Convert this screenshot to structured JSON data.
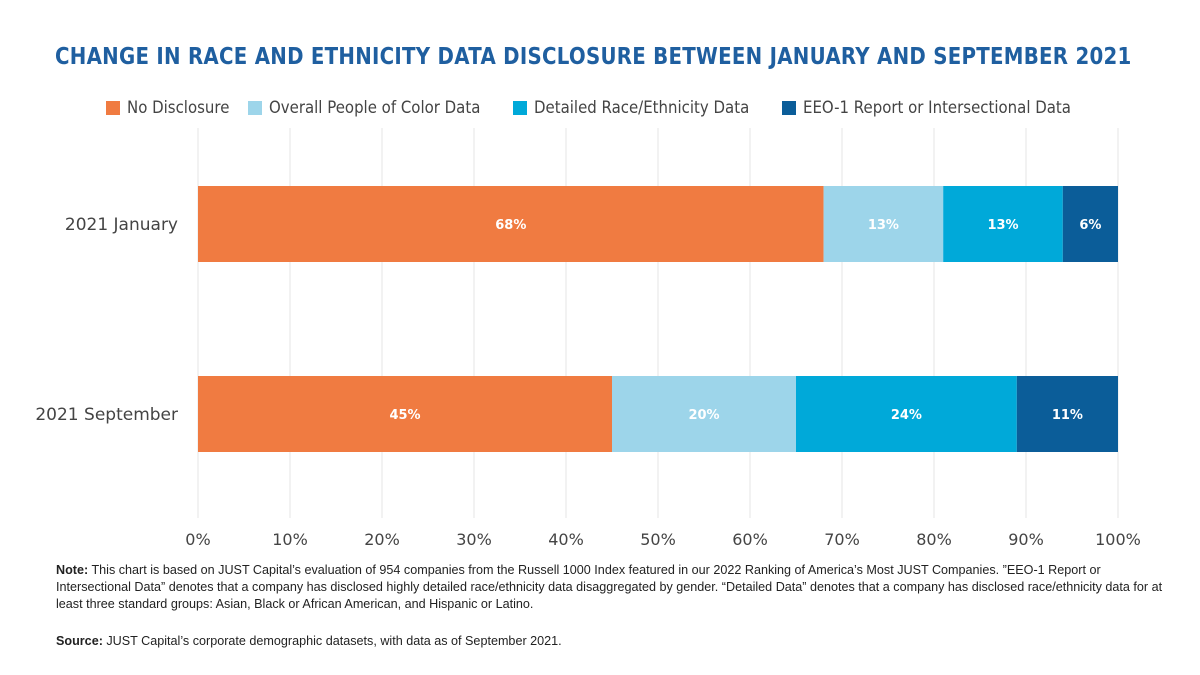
{
  "chart_data": {
    "type": "bar",
    "orientation": "horizontal",
    "stacked": true,
    "title": "CHANGE IN RACE AND ETHNICITY DATA DISCLOSURE BETWEEN JANUARY AND SEPTEMBER 2021",
    "categories": [
      "2021 January",
      "2021 September"
    ],
    "series": [
      {
        "name": "No Disclosure",
        "color": "#f07b41",
        "values": [
          68,
          45
        ]
      },
      {
        "name": "Overall People of Color Data",
        "color": "#9dd5ea",
        "values": [
          13,
          20
        ]
      },
      {
        "name": "Detailed Race/Ethnicity Data",
        "color": "#00a9d9",
        "values": [
          13,
          24
        ]
      },
      {
        "name": "EEO-1 Report or Intersectional Data",
        "color": "#0b5d99",
        "values": [
          6,
          11
        ]
      }
    ],
    "xlim": [
      0,
      100
    ],
    "x_ticks": [
      "0%",
      "10%",
      "20%",
      "30%",
      "40%",
      "50%",
      "60%",
      "70%",
      "80%",
      "90%",
      "100%"
    ],
    "grid": true,
    "legend_position": "top"
  },
  "notes": {
    "note_label": "Note:",
    "note_text": " This chart is based on JUST Capital’s evaluation of 954 companies from the Russell 1000 Index featured in our 2022 Ranking of America’s Most JUST Companies. ”EEO-1 Report or Intersectional Data” denotes that a company has disclosed highly detailed race/ethnicity data disaggregated by gender. “Detailed Data” denotes that a company has disclosed race/ethnicity data for at least three standard groups: Asian, Black or African American, and Hispanic or Latino.",
    "source_label": "Source:",
    "source_text": " JUST Capital’s corporate demographic datasets, with data as of September 2021."
  }
}
